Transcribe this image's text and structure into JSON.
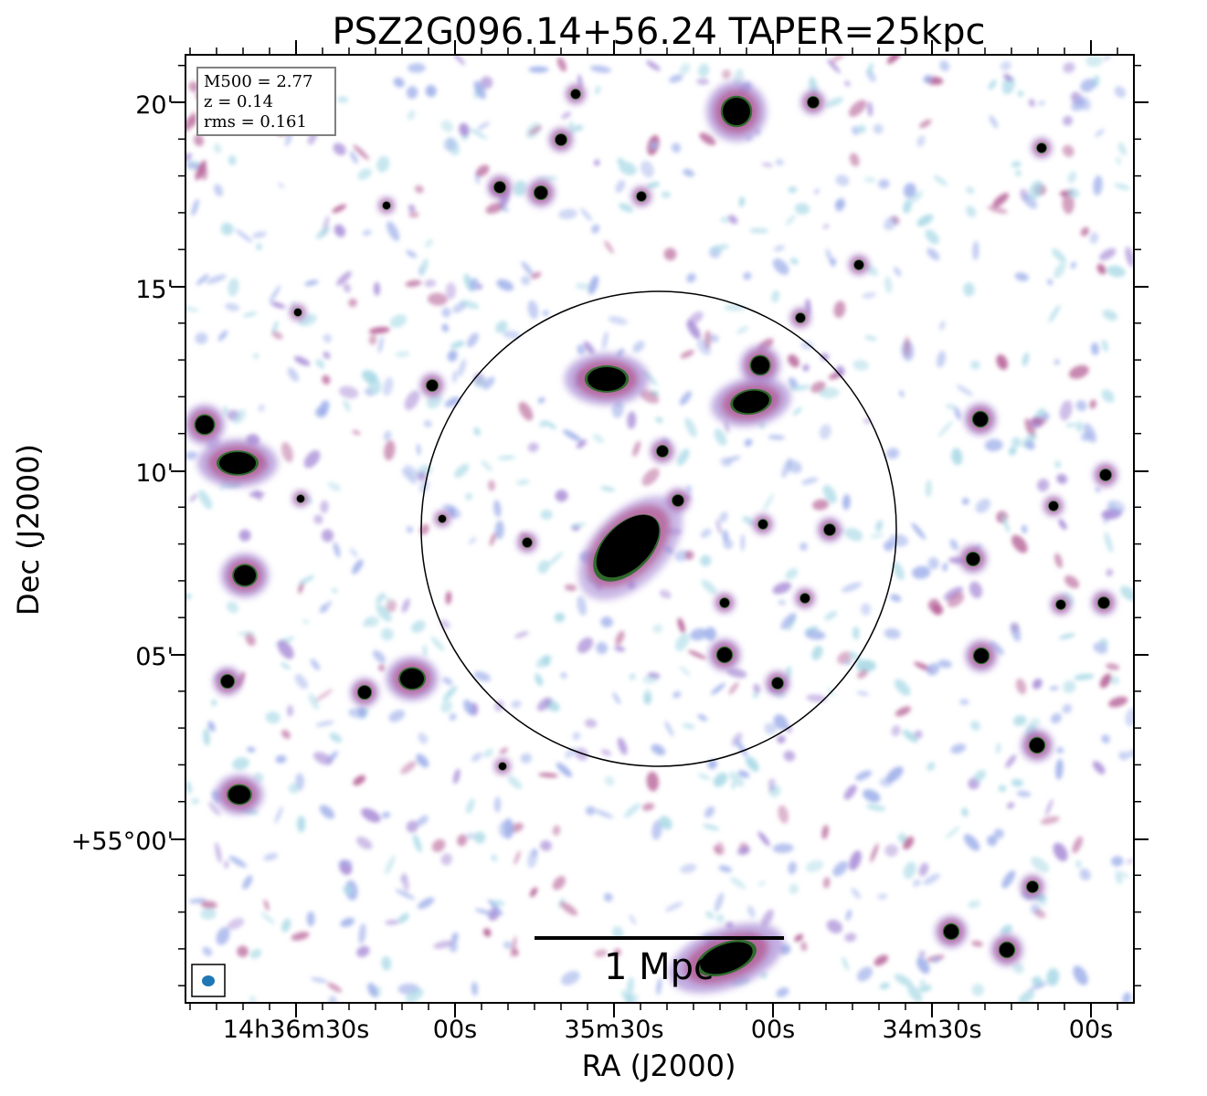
{
  "title": "PSZ2G096.14+56.24 TAPER=25kpc",
  "axes": {
    "xlabel": "RA (J2000)",
    "ylabel": "Dec (J2000)",
    "x_ticks": [
      "14h36m30s",
      "00s",
      "35m30s",
      "00s",
      "34m30s",
      "00s"
    ],
    "y_ticks": [
      "20'",
      "15'",
      "10'",
      "05'",
      "+55°00'"
    ]
  },
  "info_box": {
    "m500": "M500 = 2.77",
    "z": "z = 0.14",
    "rms": "rms = 0.161"
  },
  "scale_bar": {
    "label": "1 Mpc"
  },
  "colors": {
    "core": "#000000",
    "inner_green": "#2f6a2c",
    "mid_mauve": "#b45d94",
    "outer_purple": "#a78bd6",
    "faint_blue": "#9fb0ea",
    "faint_cyan": "#a9d9e6",
    "beam": "#1f77b4"
  }
}
